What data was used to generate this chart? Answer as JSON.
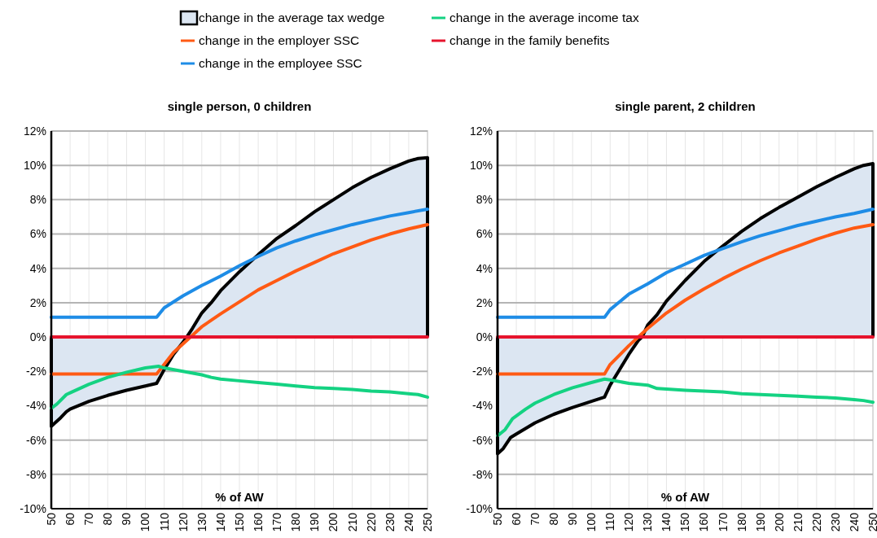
{
  "chart_data": [
    {
      "type": "line",
      "title": "single person, 0 children",
      "xlabel": "% of AW",
      "legend": "top",
      "grid": true,
      "line_style": "solid",
      "marker": "none",
      "xlim": [
        50,
        250
      ],
      "xticks": [
        50,
        60,
        70,
        80,
        90,
        100,
        110,
        120,
        130,
        140,
        150,
        160,
        170,
        180,
        190,
        200,
        210,
        220,
        230,
        240,
        250
      ],
      "ylim": [
        -10,
        12
      ],
      "yticks": [
        {
          "value": -10,
          "label": "-10%"
        },
        {
          "value": -8,
          "label": "-8%"
        },
        {
          "value": -6,
          "label": "-6%"
        },
        {
          "value": -4,
          "label": "-4%"
        },
        {
          "value": -2,
          "label": "-2%"
        },
        {
          "value": 0,
          "label": "0%"
        },
        {
          "value": 2,
          "label": "2%"
        },
        {
          "value": 4,
          "label": "4%"
        },
        {
          "value": 6,
          "label": "6%"
        },
        {
          "value": 8,
          "label": "8%"
        },
        {
          "value": 10,
          "label": "10%"
        },
        {
          "value": 12,
          "label": "12%"
        }
      ],
      "series": [
        {
          "name": "change in the average tax wedge",
          "type": "area",
          "color": "#000000",
          "x": [
            50,
            52,
            55,
            58,
            60,
            70,
            80,
            90,
            100,
            106,
            110,
            115,
            120,
            122,
            125,
            130,
            135,
            140,
            150,
            160,
            170,
            180,
            190,
            200,
            210,
            220,
            230,
            240,
            245,
            250
          ],
          "values": [
            -5.2,
            -5.0,
            -4.7,
            -4.35,
            -4.2,
            -3.75,
            -3.4,
            -3.1,
            -2.85,
            -2.7,
            -1.9,
            -1.0,
            -0.3,
            0,
            0.5,
            1.4,
            2.0,
            2.7,
            3.8,
            4.8,
            5.75,
            6.5,
            7.3,
            8.0,
            8.7,
            9.3,
            9.8,
            10.25,
            10.4,
            10.45
          ]
        },
        {
          "name": "change in the employer SSC",
          "type": "line",
          "color": "#ff5a14",
          "x": [
            50,
            106,
            110,
            115,
            120,
            125,
            130,
            140,
            150,
            160,
            170,
            180,
            190,
            200,
            210,
            220,
            230,
            240,
            250
          ],
          "values": [
            -2.15,
            -2.15,
            -1.6,
            -0.9,
            -0.4,
            0.1,
            0.6,
            1.35,
            2.05,
            2.75,
            3.3,
            3.85,
            4.35,
            4.85,
            5.25,
            5.65,
            6.0,
            6.3,
            6.55
          ]
        },
        {
          "name": "change in the employee SSC",
          "type": "line",
          "color": "#1e8ce6",
          "x": [
            50,
            106,
            110,
            120,
            130,
            140,
            150,
            160,
            170,
            180,
            190,
            200,
            210,
            220,
            230,
            240,
            250
          ],
          "values": [
            1.15,
            1.15,
            1.7,
            2.4,
            3.0,
            3.55,
            4.15,
            4.7,
            5.2,
            5.6,
            5.95,
            6.25,
            6.55,
            6.8,
            7.05,
            7.25,
            7.45
          ]
        },
        {
          "name": "change in the average income tax",
          "type": "line",
          "color": "#14d282",
          "x": [
            50,
            53,
            58,
            60,
            70,
            80,
            90,
            100,
            107,
            110,
            120,
            130,
            135,
            140,
            150,
            160,
            170,
            180,
            190,
            200,
            210,
            220,
            230,
            240,
            245,
            250
          ],
          "values": [
            -4.15,
            -3.9,
            -3.35,
            -3.25,
            -2.75,
            -2.35,
            -2.05,
            -1.8,
            -1.7,
            -1.8,
            -2.0,
            -2.2,
            -2.35,
            -2.45,
            -2.55,
            -2.65,
            -2.75,
            -2.85,
            -2.95,
            -3.0,
            -3.05,
            -3.15,
            -3.2,
            -3.3,
            -3.35,
            -3.5
          ]
        },
        {
          "name": "change in the family benefits",
          "type": "line",
          "color": "#e6142d",
          "x": [
            50,
            250
          ],
          "values": [
            0,
            0
          ]
        }
      ]
    },
    {
      "type": "line",
      "title": "single parent, 2 children",
      "xlabel": "% of AW",
      "grid": true,
      "line_style": "solid",
      "marker": "none",
      "xlim": [
        50,
        250
      ],
      "xticks": [
        50,
        60,
        70,
        80,
        90,
        100,
        110,
        120,
        130,
        140,
        150,
        160,
        170,
        180,
        190,
        200,
        210,
        220,
        230,
        240,
        250
      ],
      "ylim": [
        -10,
        12
      ],
      "yticks": [
        {
          "value": -10,
          "label": "-10%"
        },
        {
          "value": -8,
          "label": "-8%"
        },
        {
          "value": -6,
          "label": "-6%"
        },
        {
          "value": -4,
          "label": "-4%"
        },
        {
          "value": -2,
          "label": "-2%"
        },
        {
          "value": 0,
          "label": "0%"
        },
        {
          "value": 2,
          "label": "2%"
        },
        {
          "value": 4,
          "label": "4%"
        },
        {
          "value": 6,
          "label": "6%"
        },
        {
          "value": 8,
          "label": "8%"
        },
        {
          "value": 10,
          "label": "10%"
        },
        {
          "value": 12,
          "label": "12%"
        }
      ],
      "series": [
        {
          "type": "area",
          "color": "#000000",
          "x": [
            50,
            53,
            57,
            60,
            70,
            80,
            90,
            100,
            107,
            110,
            115,
            120,
            125,
            127,
            130,
            135,
            140,
            150,
            160,
            170,
            180,
            190,
            200,
            210,
            220,
            230,
            240,
            245,
            250
          ],
          "values": [
            -6.8,
            -6.5,
            -5.85,
            -5.65,
            -5.0,
            -4.5,
            -4.1,
            -3.75,
            -3.5,
            -2.8,
            -1.9,
            -1.0,
            -0.2,
            0,
            0.7,
            1.3,
            2.1,
            3.3,
            4.4,
            5.3,
            6.15,
            6.9,
            7.55,
            8.15,
            8.75,
            9.3,
            9.8,
            10.0,
            10.1
          ]
        },
        {
          "type": "line",
          "color": "#ff5a14",
          "x": [
            50,
            107,
            110,
            120,
            125,
            130,
            140,
            150,
            160,
            170,
            180,
            190,
            200,
            210,
            220,
            230,
            240,
            250
          ],
          "values": [
            -2.15,
            -2.15,
            -1.6,
            -0.5,
            0,
            0.5,
            1.4,
            2.15,
            2.8,
            3.4,
            3.95,
            4.45,
            4.9,
            5.3,
            5.7,
            6.05,
            6.35,
            6.55
          ]
        },
        {
          "type": "line",
          "color": "#1e8ce6",
          "x": [
            50,
            107,
            110,
            120,
            130,
            140,
            150,
            160,
            170,
            180,
            190,
            200,
            210,
            220,
            230,
            240,
            250
          ],
          "values": [
            1.15,
            1.15,
            1.6,
            2.5,
            3.1,
            3.75,
            4.25,
            4.75,
            5.15,
            5.55,
            5.9,
            6.2,
            6.5,
            6.75,
            7.0,
            7.2,
            7.45
          ]
        },
        {
          "type": "line",
          "color": "#14d282",
          "x": [
            50,
            54,
            58,
            65,
            70,
            80,
            90,
            100,
            107,
            110,
            120,
            130,
            135,
            150,
            160,
            170,
            180,
            190,
            200,
            210,
            220,
            230,
            240,
            245,
            250
          ],
          "values": [
            -5.75,
            -5.4,
            -4.75,
            -4.2,
            -3.85,
            -3.35,
            -2.95,
            -2.65,
            -2.45,
            -2.5,
            -2.7,
            -2.8,
            -3.0,
            -3.1,
            -3.15,
            -3.2,
            -3.3,
            -3.35,
            -3.4,
            -3.45,
            -3.5,
            -3.55,
            -3.65,
            -3.7,
            -3.8
          ]
        },
        {
          "type": "line",
          "color": "#e6142d",
          "x": [
            50,
            250
          ],
          "values": [
            0,
            0
          ]
        }
      ]
    }
  ]
}
